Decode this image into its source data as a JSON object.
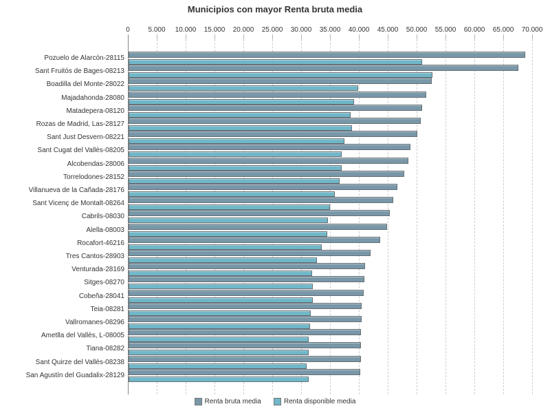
{
  "title": "Municipios con mayor Renta bruta media",
  "colors": {
    "renta_bruta": "#7897a8",
    "renta_disponible": "#6fb7c9",
    "bar_border": "#666f74",
    "gridline": "#cccccc",
    "axis_line": "#888888",
    "text": "#333333"
  },
  "legend": {
    "items": [
      {
        "label": "Renta bruta media",
        "color": "#7897a8"
      },
      {
        "label": "Renta disponible media",
        "color": "#6fb7c9"
      }
    ]
  },
  "chart_data": {
    "type": "bar",
    "orientation": "horizontal",
    "title": "Municipios con mayor Renta bruta media",
    "xlabel": "",
    "ylabel": "",
    "grid": "vertical-dashed",
    "legend_position": "bottom",
    "x_axis": {
      "position": "top",
      "min": 0,
      "max": 70000,
      "tick_interval": 5000,
      "tick_labels": [
        "0",
        "5.000",
        "10.000",
        "15.000",
        "20.000",
        "25.000",
        "30.000",
        "35.000",
        "40.000",
        "45.000",
        "50.000",
        "55.000",
        "60.000",
        "65.000",
        "70.000"
      ]
    },
    "categories": [
      "Pozuelo de Alarcón-28115",
      "Sant Fruitós de Bages-08213",
      "Boadilla del Monte-28022",
      "Majadahonda-28080",
      "Matadepera-08120",
      "Rozas de Madrid, Las-28127",
      "Sant Just Desvern-08221",
      "Sant Cugat del Vallès-08205",
      "Alcobendas-28006",
      "Torrelodones-28152",
      "Villanueva de la Cañada-28176",
      "Sant Vicenç de Montalt-08264",
      "Cabrils-08030",
      "Alella-08003",
      "Rocafort-46216",
      "Tres Cantos-28903",
      "Venturada-28169",
      "Sitges-08270",
      "Cobeña-28041",
      "Teia-08281",
      "Vallromanes-08296",
      "Ametlla del Vallès, L-08005",
      "Tiana-08282",
      "Sant Quirze del Vallès-08238",
      "San Agustín del Guadalix-28129"
    ],
    "series": [
      {
        "name": "Renta bruta media",
        "color": "#7897a8",
        "values": [
          68700,
          67500,
          52500,
          51500,
          50800,
          50600,
          50000,
          48800,
          48500,
          47700,
          46600,
          45800,
          45200,
          44800,
          43600,
          41900,
          41000,
          40800,
          40700,
          40400,
          40300,
          40200,
          40200,
          40200,
          40100
        ]
      },
      {
        "name": "Renta disponible media",
        "color": "#6fb7c9",
        "values": [
          50800,
          52600,
          39800,
          39100,
          38400,
          38700,
          37400,
          36900,
          36900,
          36500,
          35700,
          34900,
          34500,
          34400,
          33500,
          32600,
          31800,
          31900,
          31900,
          31500,
          31400,
          31200,
          31200,
          30800,
          31200
        ]
      }
    ]
  }
}
